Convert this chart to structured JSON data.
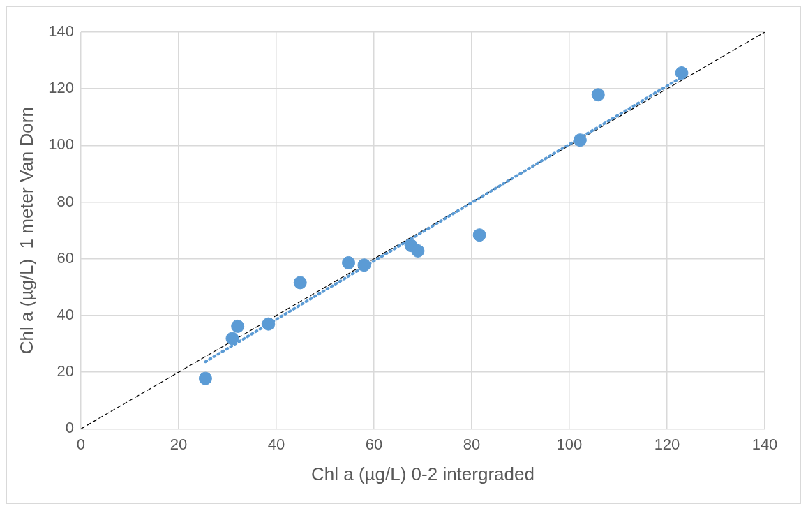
{
  "chart_data": {
    "type": "scatter",
    "xlabel": "Chl a (µg/L) 0-2 intergraded",
    "ylabel": "Chl a (µg/L)  1 meter Van Dorn",
    "x": [
      25.5,
      31.0,
      32.1,
      38.4,
      44.9,
      54.8,
      58.0,
      67.6,
      69.0,
      81.6,
      102.2,
      105.9,
      123.0
    ],
    "series": [
      {
        "type": "scatter",
        "color": "#5b9bd5",
        "marker": "circle",
        "values": [
          17.8,
          31.9,
          36.2,
          37.0,
          51.6,
          58.6,
          57.8,
          64.7,
          62.8,
          68.4,
          101.9,
          117.9,
          125.6
        ]
      },
      {
        "type": "line",
        "color": "#5b9bd5",
        "line_style": "dotted",
        "marker": "none",
        "x": [
          25.5,
          123.0
        ],
        "values": [
          23.7,
          124.1
        ]
      },
      {
        "type": "line",
        "color": "#000000",
        "line_style": "dashed",
        "marker": "none",
        "x": [
          0,
          140
        ],
        "values": [
          0,
          140
        ]
      }
    ],
    "xlim": [
      0,
      140
    ],
    "xticks": [
      0,
      20,
      40,
      60,
      80,
      100,
      120,
      140
    ],
    "ylim": [
      0,
      140
    ],
    "yticks": [
      0,
      20,
      40,
      60,
      80,
      100,
      120,
      140
    ],
    "grid": true,
    "legend": false
  }
}
